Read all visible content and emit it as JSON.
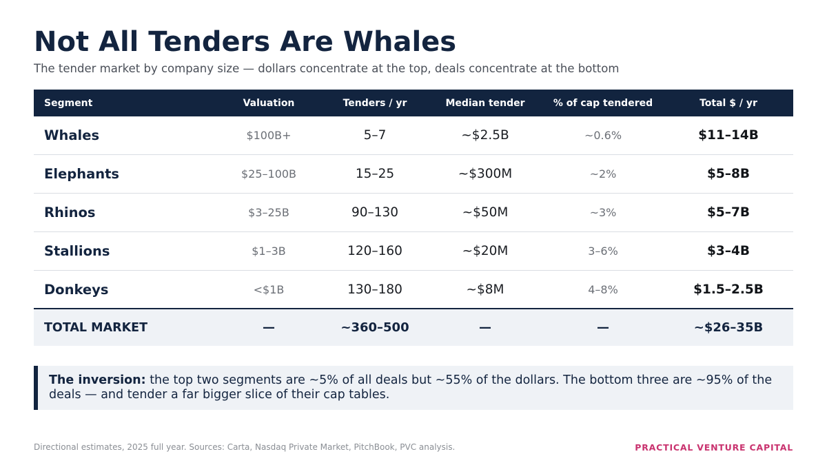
{
  "title": "Not All Tenders Are Whales",
  "subtitle": "The tender market by company size — dollars concentrate at the top, deals concentrate at the bottom",
  "table": {
    "headers": [
      "Segment",
      "Valuation",
      "Tenders / yr",
      "Median tender",
      "% of cap tendered",
      "Total $ / yr"
    ],
    "rows": [
      [
        "Whales",
        "$100B+",
        "5–7",
        "~$2.5B",
        "~0.6%",
        "$11–14B"
      ],
      [
        "Elephants",
        "$25–100B",
        "15–25",
        "~$300M",
        "~2%",
        "$5–8B"
      ],
      [
        "Rhinos",
        "$3–25B",
        "90–130",
        "~$50M",
        "~3%",
        "$5–7B"
      ],
      [
        "Stallions",
        "$1–3B",
        "120–160",
        "~$20M",
        "3–6%",
        "$3–4B"
      ],
      [
        "Donkeys",
        "<$1B",
        "130–180",
        "~$8M",
        "4–8%",
        "$1.5–2.5B"
      ]
    ],
    "total": [
      "TOTAL MARKET",
      "—",
      "~360–500",
      "—",
      "—",
      "~$26–35B"
    ]
  },
  "callout": {
    "lead": "The inversion:",
    "text": " the top two segments are ~5% of all deals but ~55% of the dollars. The bottom three are ~95% of the deals — and tender a far bigger slice of their cap tables."
  },
  "footer": {
    "source": "Directional estimates, 2025 full year. Sources: Carta, Nasdaq Private Market, PitchBook, PVC analysis.",
    "brand": "PRACTICAL VENTURE CAPITAL"
  },
  "colors": {
    "navy": "#12243f",
    "accent": "#c9336f",
    "band": "#eff2f6"
  }
}
